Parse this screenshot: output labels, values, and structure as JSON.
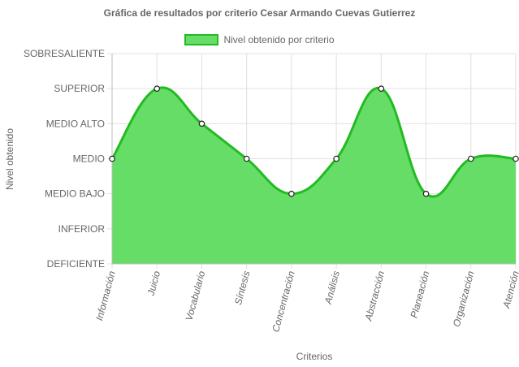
{
  "chart_data": {
    "type": "area",
    "title": "Gráfica de resultados por criterio Cesar Armando Cuevas Gutierrez",
    "xlabel": "Criterios",
    "ylabel": "Nivel obtenido",
    "y_levels": [
      "DEFICIENTE",
      "INFERIOR",
      "MEDIO BAJO",
      "MEDIO",
      "MEDIO ALTO",
      "SUPERIOR",
      "SOBRESALIENTE"
    ],
    "ylim": [
      0,
      6
    ],
    "categories": [
      "Información",
      "Juicio",
      "Vocabulario",
      "Síntesis",
      "Concentración",
      "Análisis",
      "Abstracción",
      "Planeación",
      "Organización",
      "Atención"
    ],
    "series": [
      {
        "name": "Nivel obtenido por criterio",
        "values": [
          3,
          5,
          4,
          3,
          2,
          3,
          5,
          2,
          3,
          3
        ],
        "fill": "#66dd66",
        "stroke": "#22bb22"
      }
    ],
    "legend_position": "top",
    "grid": true
  }
}
